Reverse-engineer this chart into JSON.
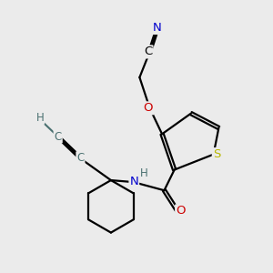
{
  "background_color": "#ebebeb",
  "atom_colors": {
    "C": "#000000",
    "N": "#0000cd",
    "O": "#cc0000",
    "S": "#b8b800",
    "H": "#4a7070"
  },
  "figsize": [
    3.0,
    3.0
  ],
  "dpi": 100
}
